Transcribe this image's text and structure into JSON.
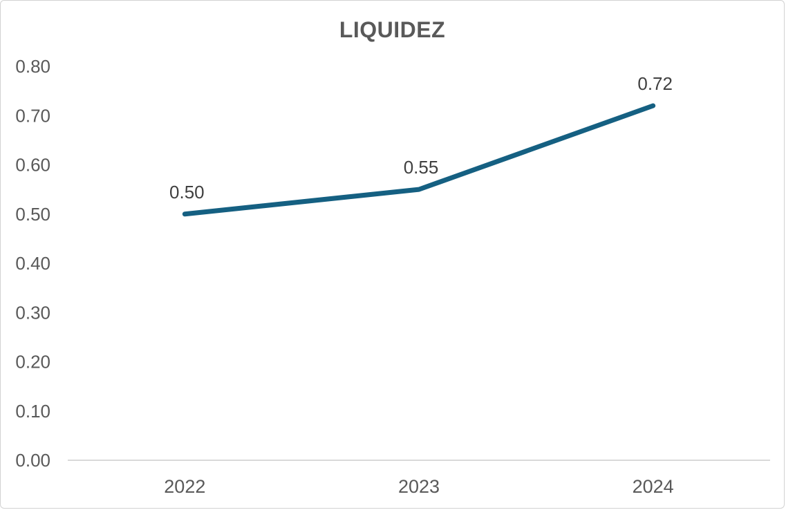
{
  "chart": {
    "title": "LIQUIDEZ"
  },
  "chart_data": {
    "type": "line",
    "title": "LIQUIDEZ",
    "xlabel": "",
    "ylabel": "",
    "categories": [
      "2022",
      "2023",
      "2024"
    ],
    "series": [
      {
        "name": "LIQUIDEZ",
        "values": [
          0.5,
          0.55,
          0.72
        ],
        "labels": [
          "0.50",
          "0.55",
          "0.72"
        ],
        "color": "#156082"
      }
    ],
    "ylim": [
      0.0,
      0.8
    ],
    "ytick_step": 0.1,
    "ytick_labels": [
      "0.00",
      "0.10",
      "0.20",
      "0.30",
      "0.40",
      "0.50",
      "0.60",
      "0.70",
      "0.80"
    ],
    "grid": false,
    "legend": "none",
    "data_labels_position": "above",
    "colors": {
      "line": "#156082",
      "axis_line": "#d9d9d9",
      "tick_label": "#595959",
      "category_label": "#595959",
      "data_label": "#404040",
      "title": "#595959",
      "background": "#ffffff",
      "card_border": "#d2d2d2"
    }
  }
}
